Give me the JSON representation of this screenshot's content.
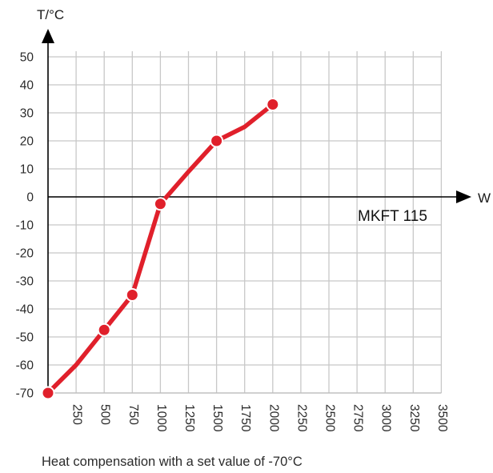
{
  "caption": "Heat compensation with a set value of -70°C",
  "chart_data": {
    "type": "line",
    "title": "",
    "xlabel": "W",
    "ylabel": "T/°C",
    "xlim": [
      0,
      3500
    ],
    "ylim": [
      -70,
      50
    ],
    "x_ticks": [
      250,
      500,
      750,
      1000,
      1250,
      1500,
      1750,
      2000,
      2250,
      2500,
      2750,
      3000,
      3250,
      3500
    ],
    "y_ticks": [
      -70,
      -60,
      -50,
      -40,
      -30,
      -20,
      -10,
      0,
      10,
      20,
      30,
      40,
      50
    ],
    "grid": true,
    "annotations": [
      "MKFT 115"
    ],
    "series": [
      {
        "color": "#e0202b",
        "x": [
          0,
          250,
          500,
          750,
          1000,
          1250,
          1500,
          1750,
          2000
        ],
        "y": [
          -70,
          -60,
          -47.5,
          -35,
          -2.5,
          9,
          20,
          25,
          33
        ],
        "markers": [
          true,
          false,
          true,
          true,
          true,
          false,
          true,
          false,
          true
        ]
      }
    ]
  }
}
